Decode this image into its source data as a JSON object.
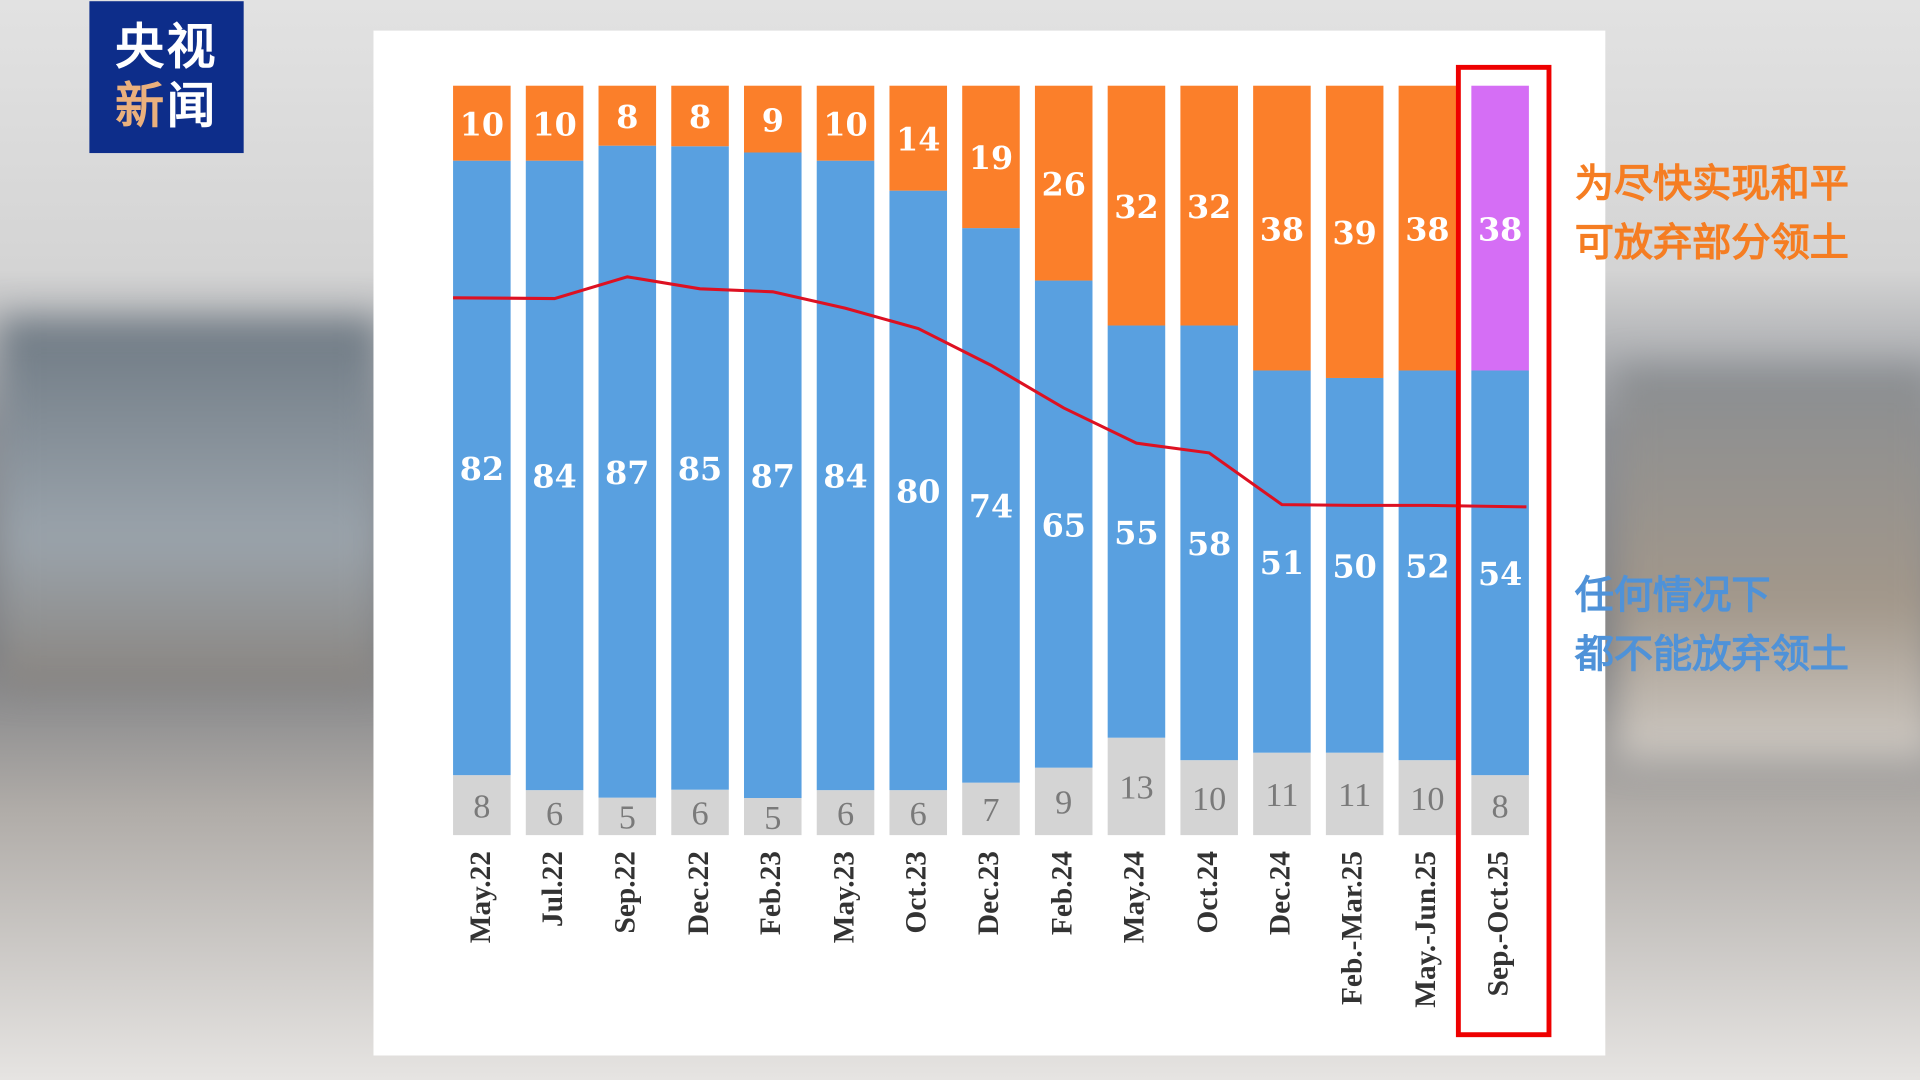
{
  "logo": {
    "line1": "央视",
    "line2a": "新",
    "line2b": "闻"
  },
  "annotations": {
    "top": [
      "为尽快实现和平",
      "可放弃部分领土"
    ],
    "bottom": [
      "任何情况下",
      "都不能放弃领土"
    ]
  },
  "colors": {
    "orange": "#fb7f2a",
    "blue": "#59a0e0",
    "gray": "#d4d4d4",
    "purple": "#d56ef5",
    "line": "#dd1122",
    "highlight": "#ee0000"
  },
  "chart_data": {
    "type": "bar",
    "stacked": true,
    "categories": [
      "May.22",
      "Jul.22",
      "Sep.22",
      "Dec.22",
      "Feb.23",
      "May.23",
      "Oct.23",
      "Dec.23",
      "Feb.24",
      "May.24",
      "Oct.24",
      "Dec.24",
      "Feb.-Mar.25",
      "May.-Jun.25",
      "Sep.-Oct.25"
    ],
    "series": [
      {
        "name": "Bottom (gray)",
        "values": [
          8,
          6,
          5,
          6,
          5,
          6,
          6,
          7,
          9,
          13,
          10,
          11,
          11,
          10,
          8
        ]
      },
      {
        "name": "Middle (blue) - 任何情况下都不能放弃领土",
        "values": [
          82,
          84,
          87,
          85,
          87,
          84,
          80,
          74,
          65,
          55,
          58,
          51,
          50,
          52,
          54
        ]
      },
      {
        "name": "Top (orange) - 为尽快实现和平可放弃部分领土",
        "values": [
          10,
          10,
          8,
          8,
          9,
          10,
          14,
          19,
          26,
          32,
          32,
          38,
          39,
          38,
          38
        ]
      }
    ],
    "trend_line": {
      "values": [
        71.7,
        71.6,
        74.5,
        72.9,
        72.5,
        70.3,
        67.6,
        62.7,
        57,
        52.3,
        51,
        44.1,
        44,
        44,
        43.8
      ]
    },
    "highlighted_category": "Sep.-Oct.25",
    "ylim": [
      0,
      100
    ],
    "grid": false
  }
}
